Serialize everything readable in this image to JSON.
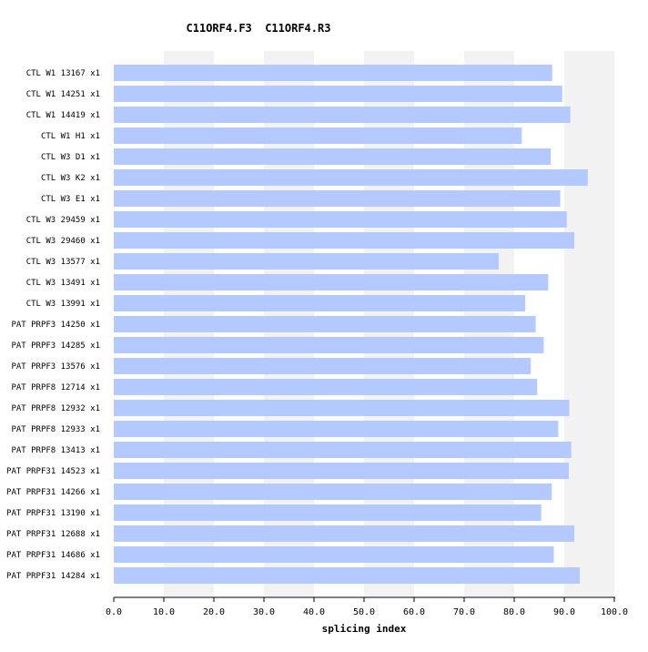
{
  "chart_data": {
    "type": "bar",
    "orientation": "horizontal",
    "title": "C11ORF4.F3  C11ORF4.R3",
    "xlabel": "splicing index",
    "ylabel": "",
    "xlim": [
      0,
      100
    ],
    "ticks": [
      "0.0",
      "10.0",
      "20.0",
      "30.0",
      "40.0",
      "50.0",
      "60.0",
      "70.0",
      "80.0",
      "90.0",
      "100.0"
    ],
    "grid": "alternating vertical bands",
    "bar_color": "#b3c9ff",
    "band_color": "#f2f2f2",
    "categories": [
      "CTL W1 13167 x1",
      "CTL W1 14251 x1",
      "CTL W1 14419 x1",
      "CTL W1 H1 x1",
      "CTL W3 D1 x1",
      "CTL W3 K2 x1",
      "CTL W3 E1 x1",
      "CTL W3 29459 x1",
      "CTL W3 29460 x1",
      "CTL W3 13577 x1",
      "CTL W3 13491 x1",
      "CTL W3 13991 x1",
      "PAT PRPF3 14250 x1",
      "PAT PRPF3 14285 x1",
      "PAT PRPF3 13576 x1",
      "PAT PRPF8 12714 x1",
      "PAT PRPF8 12932 x1",
      "PAT PRPF8 12933 x1",
      "PAT PRPF8 13413 x1",
      "PAT PRPF31 14523 x1",
      "PAT PRPF31 14266 x1",
      "PAT PRPF31 13190 x1",
      "PAT PRPF31 12688 x1",
      "PAT PRPF31 14686 x1",
      "PAT PRPF31 14284 x1"
    ],
    "values": [
      87.6,
      89.6,
      91.2,
      81.5,
      87.3,
      94.7,
      89.2,
      90.5,
      92.0,
      76.9,
      86.8,
      82.2,
      84.3,
      85.9,
      83.3,
      84.6,
      91.0,
      88.8,
      91.4,
      90.9,
      87.5,
      85.4,
      92.0,
      87.9,
      93.1
    ]
  }
}
